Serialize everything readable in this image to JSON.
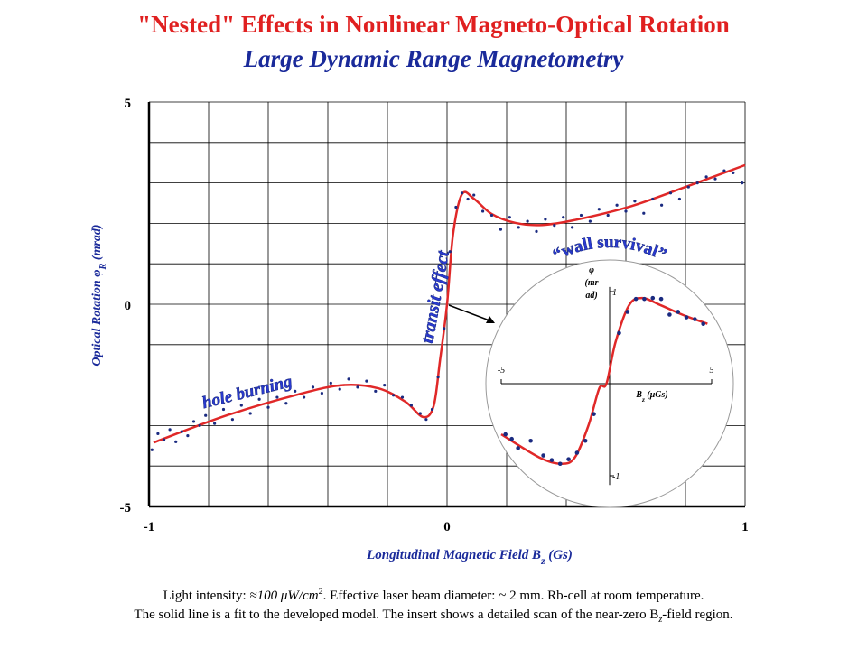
{
  "title": "\"Nested\" Effects in Nonlinear Magneto-Optical Rotation",
  "subtitle": "Large Dynamic Range Magnetometry",
  "annotations": [
    "hole burning",
    "transit effect",
    "“wall survival”"
  ],
  "footnote": [
    [
      "Light intensity: ",
      "≈100 μW/cm",
      "2",
      ".  Effective laser beam diameter: ~ 2 mm. Rb-cell at room temperature."
    ],
    [
      "The solid line is a fit to the developed model. The insert shows a detailed scan of the near-zero B",
      "z",
      "-field region."
    ]
  ],
  "chart_data": [
    {
      "type": "scatter",
      "x_label": [
        "Longitudinal Magnetic Field B",
        "z",
        " (Gs)"
      ],
      "y_label": [
        "Optical Rotation φ",
        "R",
        " (mrad)"
      ],
      "xlim": [
        -1,
        1
      ],
      "ylim": [
        -5,
        5
      ],
      "xticks": [
        -1,
        0,
        1
      ],
      "yticks": [
        -5,
        0,
        5
      ],
      "x_grid": [
        -1,
        -0.8,
        -0.6,
        -0.4,
        -0.2,
        0,
        0.2,
        0.4,
        0.6,
        0.8,
        1
      ],
      "y_grid": [
        -5,
        -4,
        -3,
        -2,
        -1,
        0,
        1,
        2,
        3,
        4,
        5
      ],
      "points": {
        "color": "#1a2a80",
        "x": [
          -0.99,
          -0.97,
          -0.95,
          -0.93,
          -0.91,
          -0.89,
          -0.87,
          -0.85,
          -0.83,
          -0.81,
          -0.78,
          -0.75,
          -0.72,
          -0.69,
          -0.66,
          -0.63,
          -0.6,
          -0.57,
          -0.54,
          -0.51,
          -0.48,
          -0.45,
          -0.42,
          -0.39,
          -0.36,
          -0.33,
          -0.3,
          -0.27,
          -0.24,
          -0.21,
          -0.18,
          -0.15,
          -0.12,
          -0.09,
          -0.07,
          -0.05,
          -0.03,
          -0.01,
          0.01,
          0.03,
          0.05,
          0.07,
          0.09,
          0.12,
          0.15,
          0.18,
          0.21,
          0.24,
          0.27,
          0.3,
          0.33,
          0.36,
          0.39,
          0.42,
          0.45,
          0.48,
          0.51,
          0.54,
          0.57,
          0.6,
          0.63,
          0.66,
          0.69,
          0.72,
          0.75,
          0.78,
          0.81,
          0.84,
          0.87,
          0.9,
          0.93,
          0.96,
          0.99
        ],
        "values": [
          -3.6,
          -3.2,
          -3.35,
          -3.1,
          -3.4,
          -3.15,
          -3.25,
          -2.9,
          -3.0,
          -2.75,
          -2.95,
          -2.6,
          -2.85,
          -2.5,
          -2.7,
          -2.35,
          -2.55,
          -2.3,
          -2.45,
          -2.15,
          -2.3,
          -2.05,
          -2.2,
          -1.95,
          -2.1,
          -1.85,
          -2.05,
          -1.9,
          -2.15,
          -2.0,
          -2.25,
          -2.3,
          -2.5,
          -2.7,
          -2.85,
          -2.6,
          -1.8,
          -0.6,
          1.3,
          2.4,
          2.75,
          2.6,
          2.7,
          2.3,
          2.2,
          1.85,
          2.15,
          1.9,
          2.05,
          1.8,
          2.1,
          1.95,
          2.15,
          1.9,
          2.2,
          2.05,
          2.35,
          2.2,
          2.45,
          2.3,
          2.55,
          2.25,
          2.6,
          2.45,
          2.75,
          2.6,
          2.9,
          3.0,
          3.15,
          3.1,
          3.3,
          3.25,
          3.0
        ]
      },
      "fit": {
        "color": "#e02828",
        "x": [
          -0.985,
          -0.74,
          -0.5,
          -0.35,
          -0.23,
          -0.14,
          -0.08,
          -0.045,
          -0.024,
          0,
          0.02,
          0.05,
          0.09,
          0.15,
          0.23,
          0.32,
          0.44,
          0.62,
          0.8,
          1.0
        ],
        "values": [
          -3.42,
          -2.75,
          -2.23,
          -2.0,
          -2.08,
          -2.41,
          -2.79,
          -2.52,
          -1.41,
          0,
          1.72,
          2.72,
          2.61,
          2.23,
          2.01,
          1.96,
          2.1,
          2.43,
          2.9,
          3.44
        ]
      }
    },
    {
      "type": "scatter",
      "x_label": [
        "B",
        "z",
        " (μGs)"
      ],
      "y_label": [
        "φ",
        "(mr",
        "ad)"
      ],
      "xlim": [
        -5,
        5
      ],
      "ylim": [
        -1.1,
        1.05
      ],
      "xticks": [
        -5,
        5
      ],
      "yticks": [
        -1,
        1
      ],
      "points": {
        "color": "#1a2a80",
        "x": [
          -4.8,
          -4.5,
          -4.2,
          -3.6,
          -3.0,
          -2.6,
          -2.2,
          -1.8,
          -1.4,
          -1.0,
          -0.6,
          0.6,
          1.0,
          1.4,
          1.8,
          2.2,
          2.6,
          3.0,
          3.4,
          3.8,
          4.2,
          4.6
        ],
        "values": [
          -0.55,
          -0.6,
          -0.7,
          -0.62,
          -0.78,
          -0.83,
          -0.87,
          -0.82,
          -0.75,
          -0.62,
          -0.33,
          0.55,
          0.78,
          0.92,
          0.92,
          0.93,
          0.92,
          0.75,
          0.78,
          0.72,
          0.7,
          0.65
        ]
      },
      "fit": {
        "color": "#e02828",
        "x": [
          -5.0,
          -3.2,
          -2.15,
          -1.5,
          -0.85,
          -0.34,
          0,
          0.43,
          1.07,
          1.7,
          2.6,
          3.6,
          4.8
        ],
        "values": [
          -0.55,
          -0.8,
          -0.87,
          -0.8,
          -0.45,
          -0.05,
          0,
          0.45,
          0.85,
          0.93,
          0.85,
          0.75,
          0.65
        ]
      }
    }
  ]
}
